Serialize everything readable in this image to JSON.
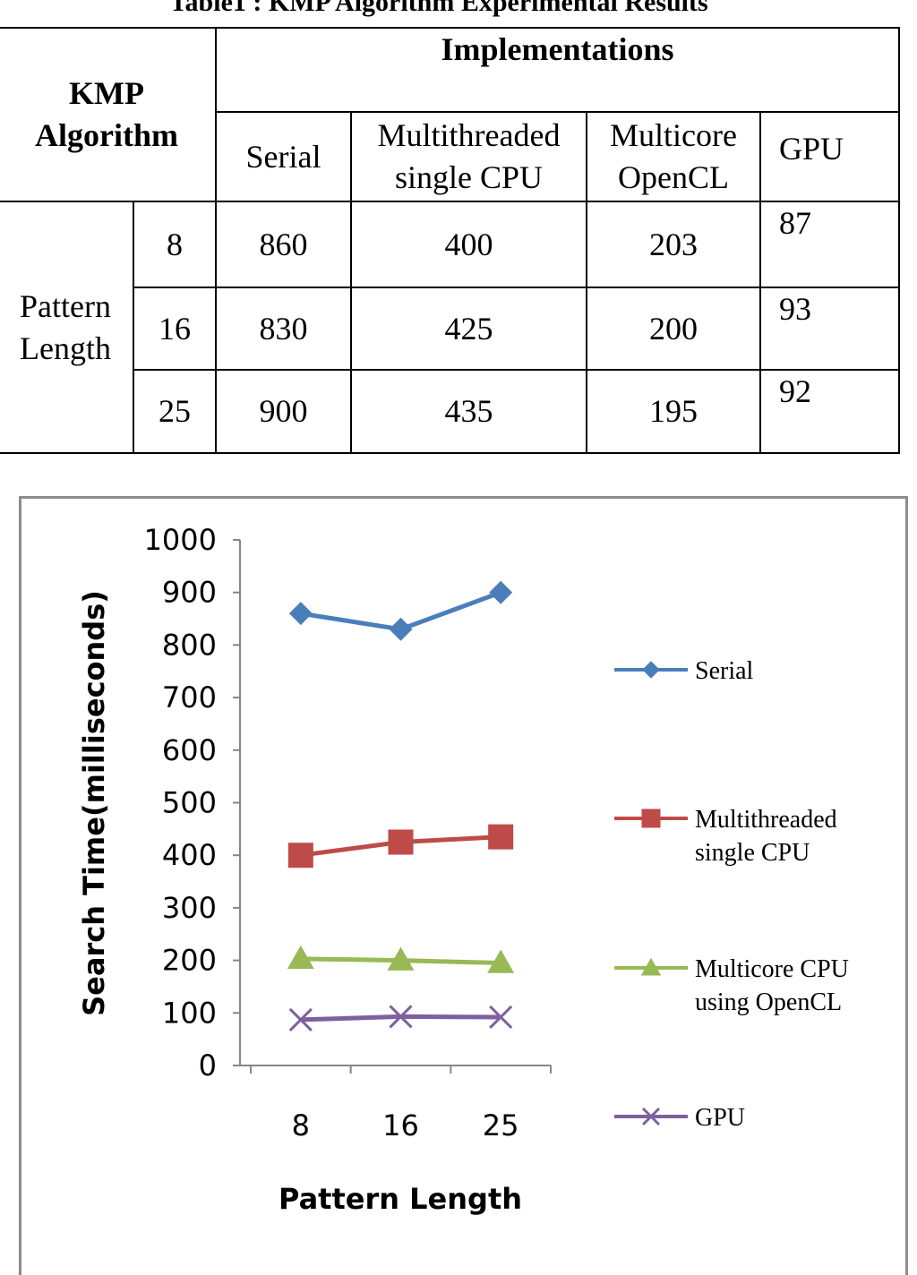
{
  "table": {
    "caption": "Table1 : KMP Algorithm Experimental Results",
    "corner_header": [
      "KMP",
      "Algorithm"
    ],
    "group_header": "Implementations",
    "columns": [
      [
        "Serial"
      ],
      [
        "Multithreaded",
        "single CPU"
      ],
      [
        "Multicore",
        "OpenCL"
      ],
      [
        "GPU"
      ]
    ],
    "row_group": [
      "Pattern",
      "Length"
    ],
    "rows": [
      {
        "pattern": "8",
        "values": [
          "860",
          "400",
          "203",
          "87"
        ]
      },
      {
        "pattern": "16",
        "values": [
          "830",
          "425",
          "200",
          "93"
        ]
      },
      {
        "pattern": "25",
        "values": [
          "900",
          "435",
          "195",
          "92"
        ]
      }
    ]
  },
  "chart_data": {
    "type": "line",
    "xlabel": "Pattern Length",
    "ylabel": "Search Time(milliseconds)",
    "categories": [
      "8",
      "16",
      "25"
    ],
    "ylim": [
      0,
      1000
    ],
    "yticks": [
      "0",
      "100",
      "200",
      "300",
      "400",
      "500",
      "600",
      "700",
      "800",
      "900",
      "1000"
    ],
    "grid": false,
    "legend_position": "right",
    "series": [
      {
        "name": "Serial",
        "label_lines": [
          "Serial"
        ],
        "values": [
          860,
          830,
          900
        ],
        "color": "#4a7ebb",
        "marker": "diamond"
      },
      {
        "name": "Multithreaded single CPU",
        "label_lines": [
          "Multithreaded",
          "single CPU"
        ],
        "values": [
          400,
          425,
          435
        ],
        "color": "#be4b48",
        "marker": "square"
      },
      {
        "name": "Multicore CPU using OpenCL",
        "label_lines": [
          "Multicore CPU",
          "using OpenCL"
        ],
        "values": [
          203,
          200,
          195
        ],
        "color": "#98b954",
        "marker": "triangle"
      },
      {
        "name": "GPU",
        "label_lines": [
          "GPU"
        ],
        "values": [
          87,
          93,
          92
        ],
        "color": "#7d60a0",
        "marker": "x"
      }
    ]
  }
}
